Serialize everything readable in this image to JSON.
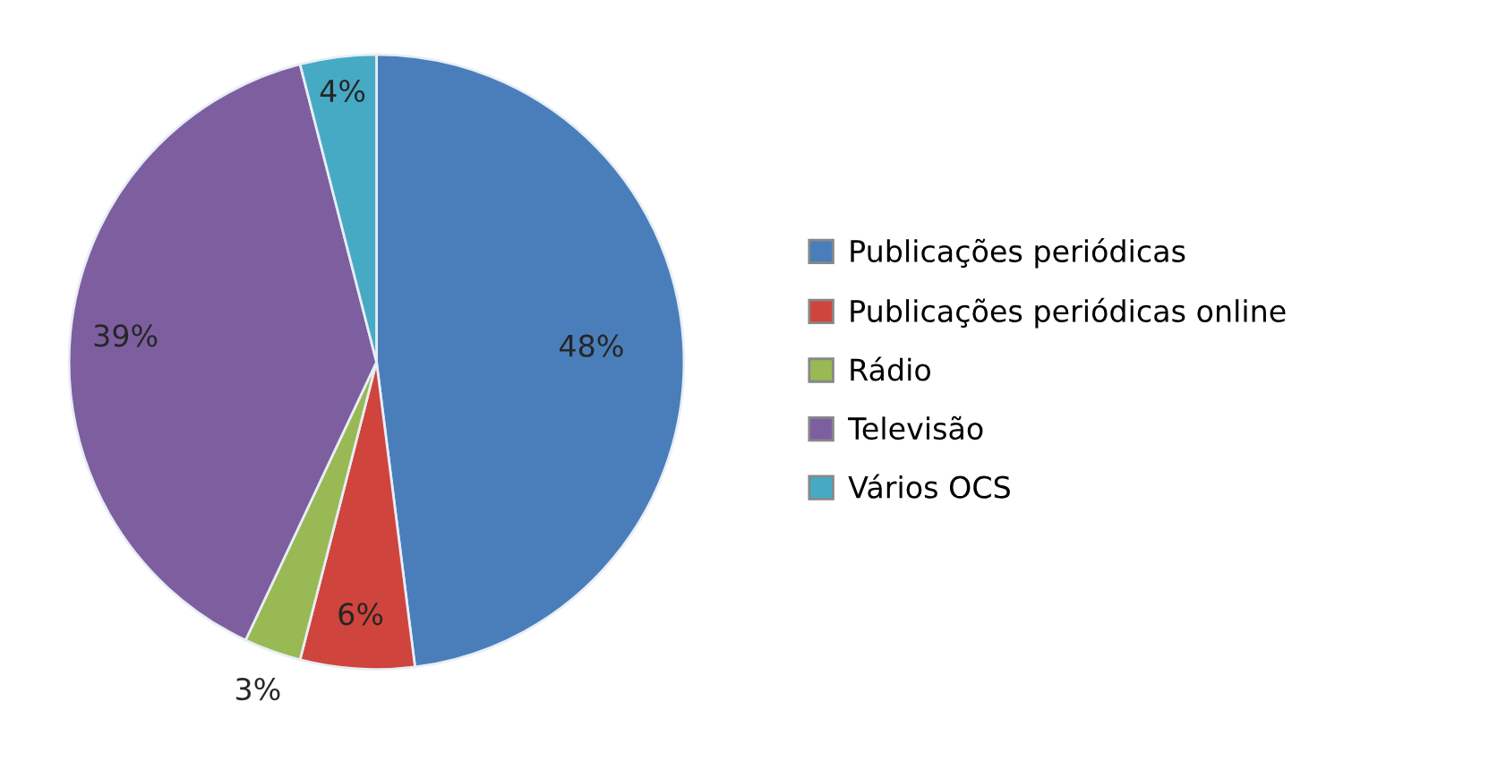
{
  "chart_data": {
    "type": "pie",
    "categories": [
      "Publicações periódicas",
      "Publicações periódicas online",
      "Rádio",
      "Televisão",
      "Vários OCS"
    ],
    "values": [
      48,
      6,
      3,
      39,
      4
    ],
    "value_labels": [
      "48%",
      "6%",
      "3%",
      "39%",
      "4%"
    ],
    "colors": [
      "#4a7ebb",
      "#d0443e",
      "#98b954",
      "#7d5fa0",
      "#46aac4"
    ],
    "legend": "right"
  }
}
